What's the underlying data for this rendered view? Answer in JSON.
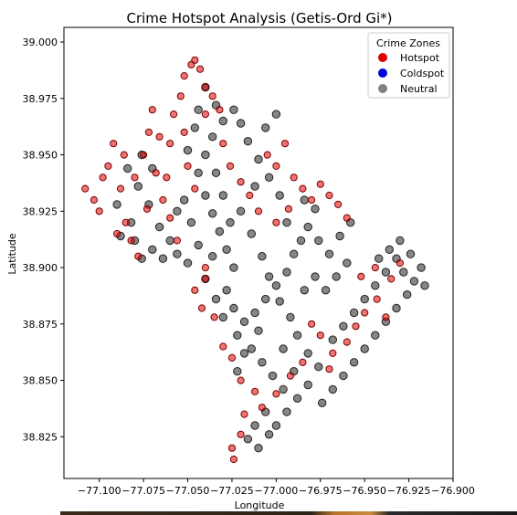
{
  "chart_data": {
    "type": "scatter",
    "title": "Crime Hotspot Analysis (Getis-Ord Gi*)",
    "xlabel": "Longitude",
    "ylabel": "Latitude",
    "xlim": [
      -77.12,
      -76.9
    ],
    "ylim": [
      38.8065,
      39.0065
    ],
    "x_ticks": [
      "−77.100",
      "−77.075",
      "−77.050",
      "−77.025",
      "−77.000",
      "−76.975",
      "−76.950",
      "−76.925",
      "−76.900"
    ],
    "x_tick_values": [
      -77.1,
      -77.075,
      -77.05,
      -77.025,
      -77.0,
      -76.975,
      -76.95,
      -76.925,
      -76.9
    ],
    "y_ticks": [
      "38.825",
      "38.850",
      "38.875",
      "38.900",
      "38.925",
      "38.950",
      "38.975",
      "39.000"
    ],
    "y_tick_values": [
      38.825,
      38.85,
      38.875,
      38.9,
      38.925,
      38.95,
      38.975,
      39.0
    ],
    "grid": false,
    "legend": {
      "title": "Crime Zones",
      "placement": "top-right",
      "entries": [
        "Hotspot",
        "Coldspot",
        "Neutral"
      ]
    },
    "series": [
      {
        "name": "Hotspot",
        "color": "#e00000",
        "points": [
          [
            -77.108,
            38.935
          ],
          [
            -77.103,
            38.93
          ],
          [
            -77.1,
            38.925
          ],
          [
            -77.095,
            38.945
          ],
          [
            -77.092,
            38.955
          ],
          [
            -77.088,
            38.935
          ],
          [
            -77.085,
            38.92
          ],
          [
            -77.082,
            38.912
          ],
          [
            -77.078,
            38.905
          ],
          [
            -77.08,
            38.94
          ],
          [
            -77.075,
            38.95
          ],
          [
            -77.072,
            38.96
          ],
          [
            -77.07,
            38.97
          ],
          [
            -77.066,
            38.958
          ],
          [
            -77.068,
            38.942
          ],
          [
            -77.064,
            38.93
          ],
          [
            -77.06,
            38.922
          ],
          [
            -77.058,
            38.968
          ],
          [
            -77.054,
            38.976
          ],
          [
            -77.052,
            38.985
          ],
          [
            -77.048,
            38.99
          ],
          [
            -77.046,
            38.992
          ],
          [
            -77.043,
            38.988
          ],
          [
            -77.04,
            38.98
          ],
          [
            -77.036,
            38.976
          ],
          [
            -77.032,
            38.97
          ],
          [
            -77.05,
            38.945
          ],
          [
            -77.046,
            38.935
          ],
          [
            -77.03,
            38.955
          ],
          [
            -77.026,
            38.945
          ],
          [
            -77.02,
            38.938
          ],
          [
            -77.015,
            38.932
          ],
          [
            -77.01,
            38.925
          ],
          [
            -77.005,
            38.95
          ],
          [
            -77.0,
            38.945
          ],
          [
            -76.995,
            38.955
          ],
          [
            -76.99,
            38.94
          ],
          [
            -76.985,
            38.935
          ],
          [
            -76.98,
            38.93
          ],
          [
            -76.975,
            38.937
          ],
          [
            -76.97,
            38.932
          ],
          [
            -76.965,
            38.928
          ],
          [
            -76.96,
            38.922
          ],
          [
            -77.0,
            38.92
          ],
          [
            -76.993,
            38.926
          ],
          [
            -77.04,
            38.895
          ],
          [
            -77.046,
            38.89
          ],
          [
            -77.042,
            38.882
          ],
          [
            -77.035,
            38.878
          ],
          [
            -77.025,
            38.86
          ],
          [
            -77.02,
            38.85
          ],
          [
            -77.012,
            38.845
          ],
          [
            -77.018,
            38.835
          ],
          [
            -77.02,
            38.826
          ],
          [
            -77.025,
            38.82
          ],
          [
            -77.024,
            38.815
          ],
          [
            -77.008,
            38.838
          ],
          [
            -77.0,
            38.844
          ],
          [
            -76.992,
            38.852
          ],
          [
            -76.985,
            38.858
          ],
          [
            -76.975,
            38.87
          ],
          [
            -76.968,
            38.862
          ],
          [
            -76.96,
            38.867
          ],
          [
            -76.955,
            38.874
          ],
          [
            -76.95,
            38.88
          ],
          [
            -76.943,
            38.886
          ],
          [
            -76.938,
            38.878
          ],
          [
            -76.935,
            38.895
          ],
          [
            -76.93,
            38.902
          ],
          [
            -76.944,
            38.9
          ],
          [
            -76.952,
            38.896
          ],
          [
            -77.06,
            38.955
          ],
          [
            -77.09,
            38.915
          ],
          [
            -77.098,
            38.94
          ],
          [
            -77.073,
            38.926
          ],
          [
            -77.056,
            38.912
          ],
          [
            -77.04,
            38.9
          ],
          [
            -77.03,
            38.865
          ],
          [
            -76.98,
            38.875
          ],
          [
            -76.97,
            38.855
          ],
          [
            -77.052,
            38.96
          ],
          [
            -77.04,
            38.968
          ],
          [
            -77.086,
            38.95
          ],
          [
            -77.062,
            38.94
          ]
        ]
      },
      {
        "name": "Coldspot",
        "color": "#0000d8",
        "points": []
      },
      {
        "name": "Neutral",
        "color": "#808080",
        "points": [
          [
            -77.04,
            38.98
          ],
          [
            -77.034,
            38.972
          ],
          [
            -77.03,
            38.965
          ],
          [
            -77.036,
            38.958
          ],
          [
            -77.04,
            38.95
          ],
          [
            -77.044,
            38.942
          ],
          [
            -77.04,
            38.932
          ],
          [
            -77.036,
            38.924
          ],
          [
            -77.032,
            38.916
          ],
          [
            -77.028,
            38.908
          ],
          [
            -77.024,
            38.9
          ],
          [
            -77.028,
            38.89
          ],
          [
            -77.024,
            38.882
          ],
          [
            -77.018,
            38.876
          ],
          [
            -77.012,
            38.88
          ],
          [
            -77.006,
            38.886
          ],
          [
            -77.0,
            38.892
          ],
          [
            -76.994,
            38.898
          ],
          [
            -76.99,
            38.906
          ],
          [
            -76.986,
            38.912
          ],
          [
            -76.982,
            38.918
          ],
          [
            -76.976,
            38.912
          ],
          [
            -76.97,
            38.906
          ],
          [
            -76.964,
            38.914
          ],
          [
            -76.958,
            38.92
          ],
          [
            -76.994,
            38.92
          ],
          [
            -76.998,
            38.932
          ],
          [
            -77.004,
            38.94
          ],
          [
            -77.01,
            38.948
          ],
          [
            -77.016,
            38.956
          ],
          [
            -77.02,
            38.964
          ],
          [
            -77.024,
            38.97
          ],
          [
            -77.02,
            38.925
          ],
          [
            -77.014,
            38.915
          ],
          [
            -77.008,
            38.905
          ],
          [
            -77.004,
            38.896
          ],
          [
            -76.998,
            38.885
          ],
          [
            -76.992,
            38.878
          ],
          [
            -76.988,
            38.87
          ],
          [
            -76.982,
            38.862
          ],
          [
            -76.976,
            38.856
          ],
          [
            -76.982,
            38.848
          ],
          [
            -76.988,
            38.842
          ],
          [
            -76.994,
            38.836
          ],
          [
            -77.0,
            38.83
          ],
          [
            -77.006,
            38.836
          ],
          [
            -77.012,
            38.83
          ],
          [
            -77.016,
            38.824
          ],
          [
            -77.01,
            38.82
          ],
          [
            -77.004,
            38.826
          ],
          [
            -76.996,
            38.846
          ],
          [
            -76.99,
            38.854
          ],
          [
            -77.002,
            38.852
          ],
          [
            -77.008,
            38.858
          ],
          [
            -77.014,
            38.864
          ],
          [
            -76.968,
            38.868
          ],
          [
            -76.962,
            38.874
          ],
          [
            -76.956,
            38.88
          ],
          [
            -76.95,
            38.886
          ],
          [
            -76.944,
            38.892
          ],
          [
            -76.938,
            38.898
          ],
          [
            -76.932,
            38.904
          ],
          [
            -76.928,
            38.898
          ],
          [
            -76.922,
            38.894
          ],
          [
            -76.916,
            38.892
          ],
          [
            -76.926,
            38.888
          ],
          [
            -76.932,
            38.882
          ],
          [
            -76.938,
            38.876
          ],
          [
            -76.944,
            38.87
          ],
          [
            -76.95,
            38.864
          ],
          [
            -76.956,
            38.858
          ],
          [
            -76.962,
            38.852
          ],
          [
            -76.968,
            38.846
          ],
          [
            -76.974,
            38.84
          ],
          [
            -76.936,
            38.908
          ],
          [
            -76.93,
            38.912
          ],
          [
            -76.924,
            38.906
          ],
          [
            -76.918,
            38.9
          ],
          [
            -76.942,
            38.904
          ],
          [
            -77.052,
            38.93
          ],
          [
            -77.048,
            38.92
          ],
          [
            -77.044,
            38.91
          ],
          [
            -77.05,
            38.902
          ],
          [
            -77.056,
            38.906
          ],
          [
            -77.06,
            38.912
          ],
          [
            -77.064,
            38.904
          ],
          [
            -77.07,
            38.908
          ],
          [
            -77.076,
            38.904
          ],
          [
            -77.066,
            38.918
          ],
          [
            -77.072,
            38.928
          ],
          [
            -77.078,
            38.936
          ],
          [
            -77.084,
            38.944
          ],
          [
            -77.076,
            38.95
          ],
          [
            -77.07,
            38.944
          ],
          [
            -77.088,
            38.914
          ],
          [
            -77.082,
            38.92
          ],
          [
            -77.056,
            38.925
          ],
          [
            -77.034,
            38.942
          ],
          [
            -77.03,
            38.932
          ],
          [
            -77.026,
            38.92
          ],
          [
            -77.036,
            38.905
          ],
          [
            -77.04,
            38.895
          ],
          [
            -77.034,
            38.886
          ],
          [
            -77.03,
            38.878
          ],
          [
            -77.022,
            38.87
          ],
          [
            -77.018,
            38.862
          ],
          [
            -77.022,
            38.854
          ],
          [
            -76.984,
            38.89
          ],
          [
            -76.978,
            38.896
          ],
          [
            -76.972,
            38.89
          ],
          [
            -76.966,
            38.896
          ],
          [
            -76.96,
            38.902
          ],
          [
            -76.996,
            38.864
          ],
          [
            -77.01,
            38.872
          ],
          [
            -76.984,
            38.93
          ],
          [
            -76.978,
            38.926
          ],
          [
            -77.006,
            38.962
          ],
          [
            -77.0,
            38.968
          ],
          [
            -77.012,
            38.936
          ],
          [
            -77.046,
            38.962
          ],
          [
            -77.05,
            38.952
          ],
          [
            -77.044,
            38.97
          ],
          [
            -77.09,
            38.928
          ],
          [
            -77.08,
            38.912
          ]
        ]
      }
    ]
  }
}
